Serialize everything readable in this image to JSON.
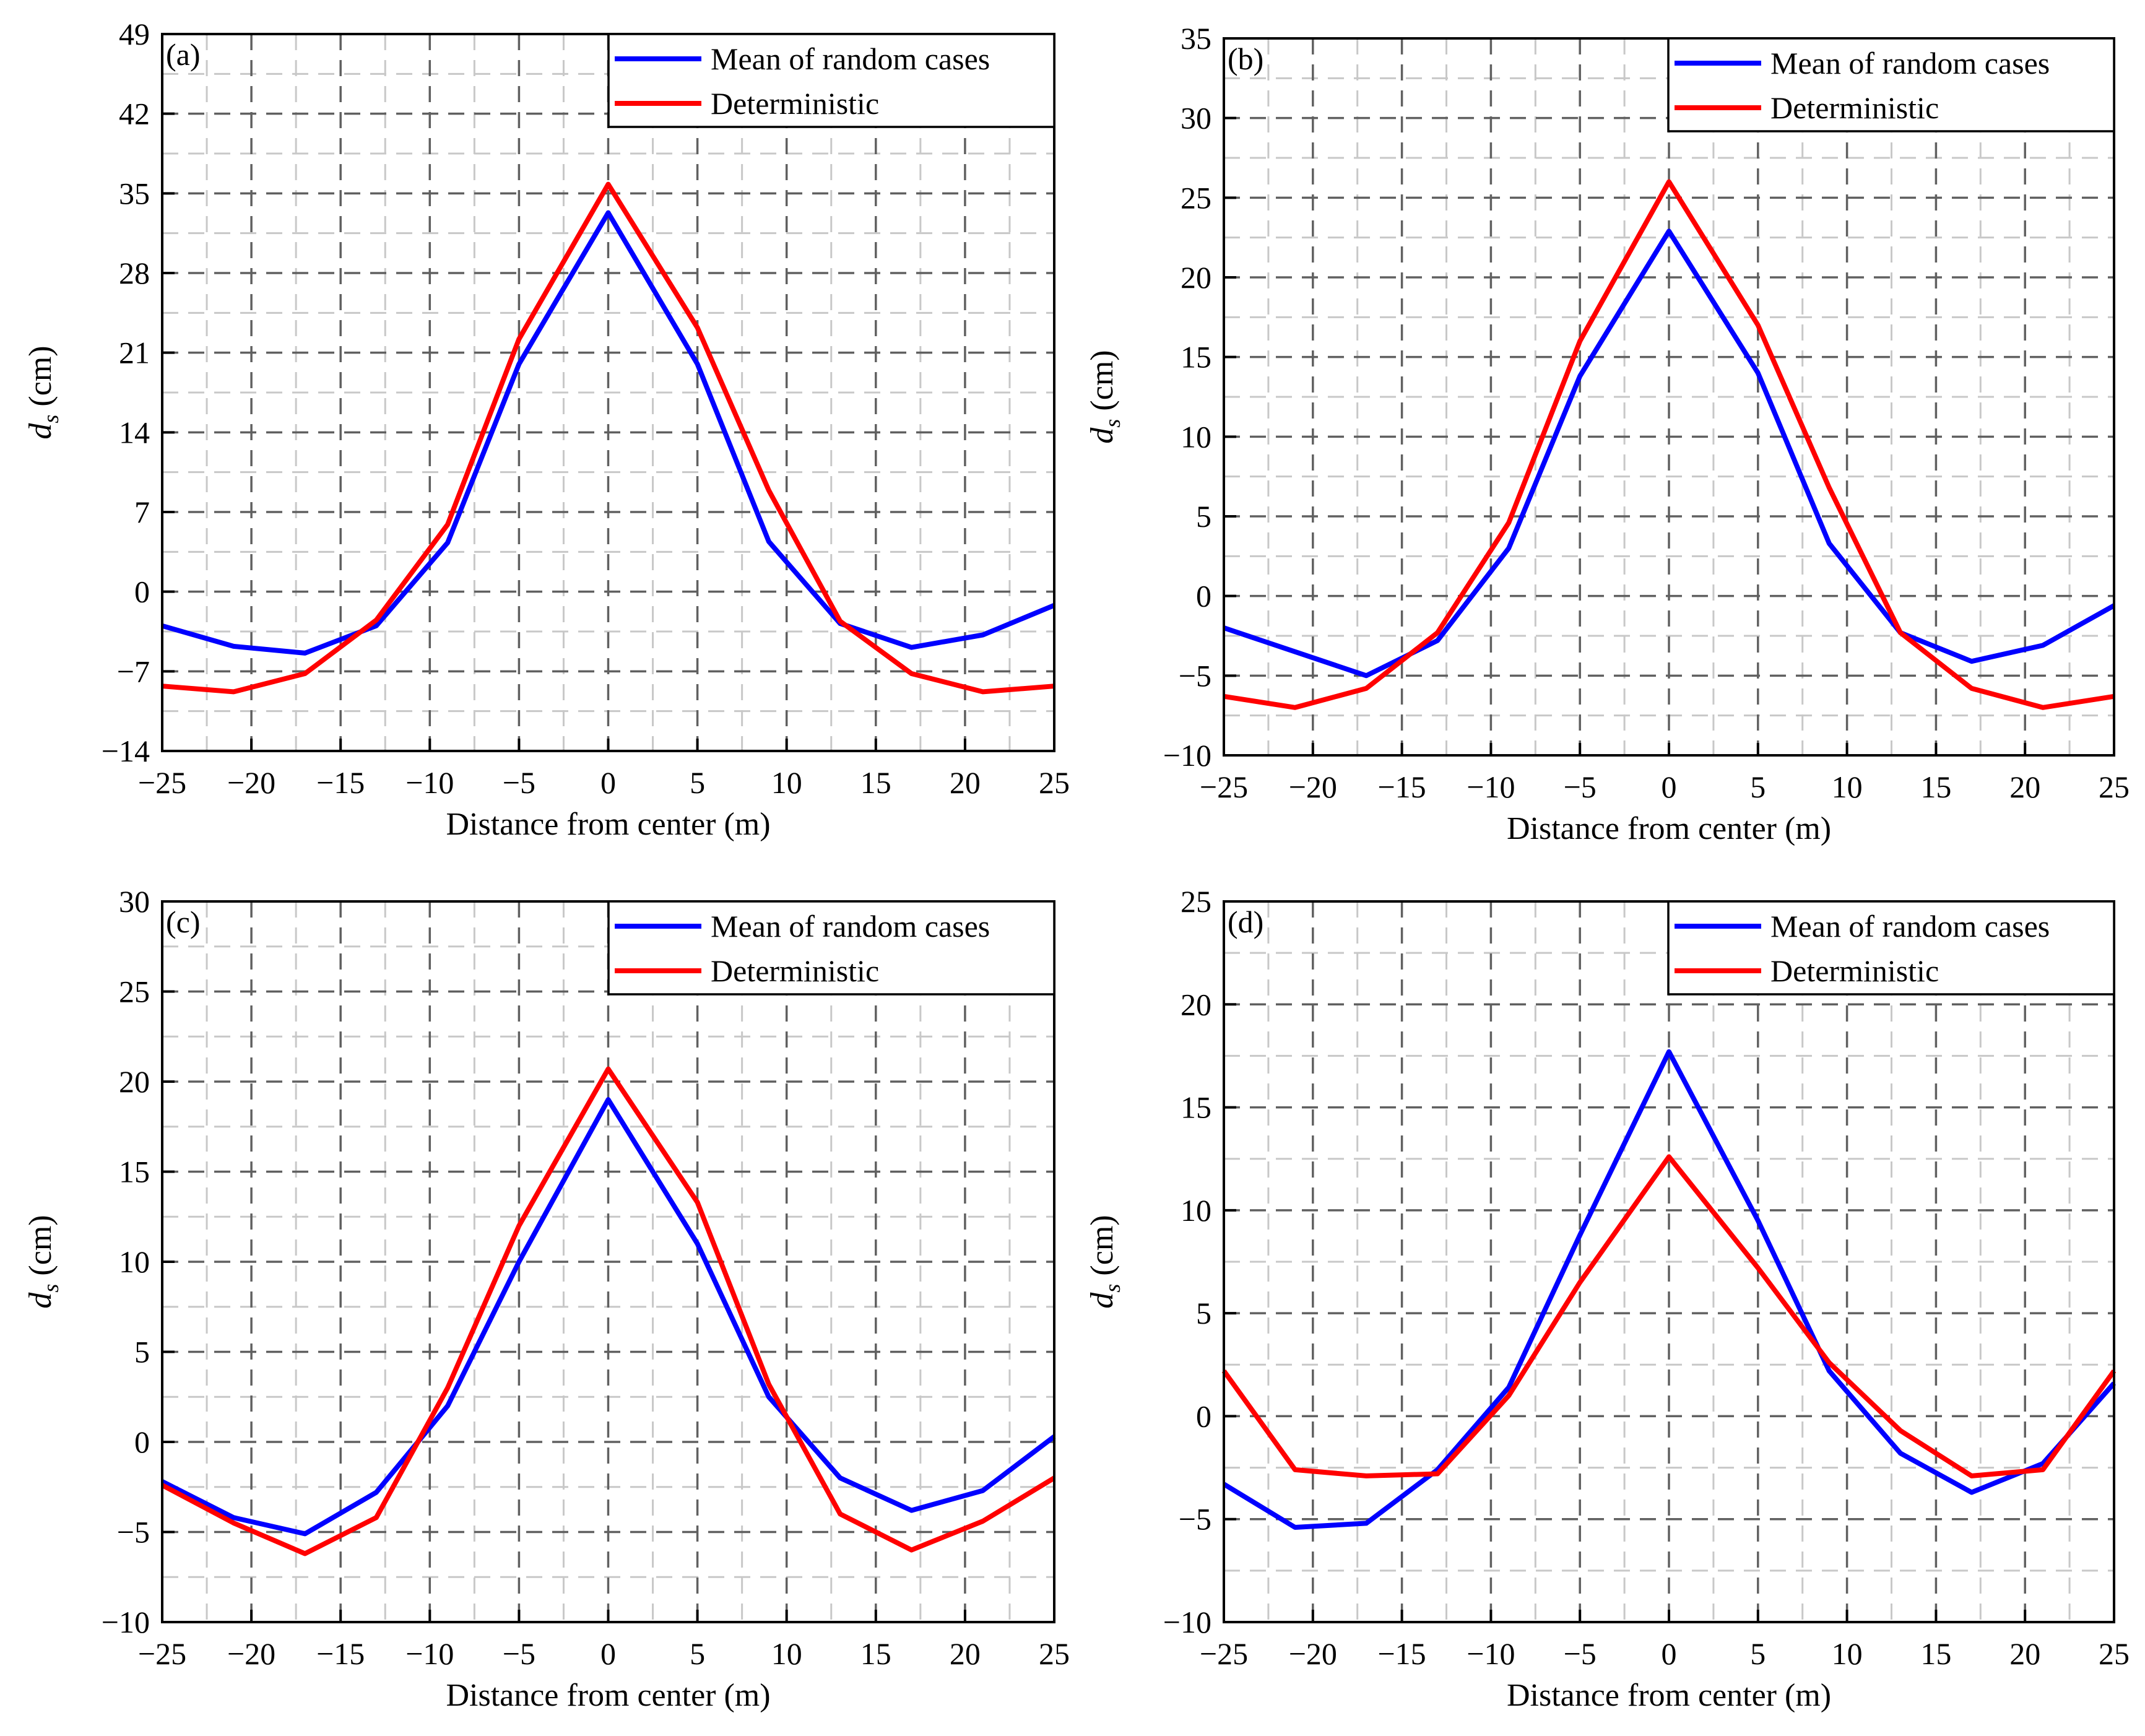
{
  "figure": {
    "legend_labels": [
      "Mean of random cases",
      "Deterministic"
    ]
  },
  "colors": {
    "mean_series": "#0000ff",
    "deterministic_series": "#ff0000",
    "major_grid": "#606060",
    "minor_grid": "#c8c8c8",
    "axis": "#000000"
  },
  "chart_data": [
    {
      "panel": "(a)",
      "type": "line",
      "xlabel": "Distance from center (m)",
      "ylabel_main": "d",
      "ylabel_sub": "s",
      "ylabel_unit": " (cm)",
      "xlim": [
        -25,
        25
      ],
      "ylim": [
        -14,
        49
      ],
      "xticks": [
        -25,
        -20,
        -15,
        -10,
        -5,
        0,
        5,
        10,
        15,
        20,
        25
      ],
      "yticks": [
        -14,
        -7,
        0,
        7,
        14,
        21,
        28,
        35,
        42,
        49
      ],
      "grid": true,
      "legend_position": "top-right",
      "x": [
        -25,
        -21,
        -17,
        -13,
        -9,
        -5,
        0,
        5,
        9,
        13,
        17,
        21,
        25
      ],
      "series": [
        {
          "name": "Mean of random cases",
          "color_key": "mean_series",
          "values": [
            -3,
            -4.8,
            -5.4,
            -3.0,
            4.3,
            20.0,
            33.3,
            20.0,
            4.4,
            -2.8,
            -4.9,
            -3.8,
            -1.2
          ]
        },
        {
          "name": "Deterministic",
          "color_key": "deterministic_series",
          "values": [
            -8.3,
            -8.8,
            -7.2,
            -2.5,
            5.9,
            22.2,
            35.8,
            23.2,
            8.9,
            -2.6,
            -7.2,
            -8.8,
            -8.3
          ]
        }
      ]
    },
    {
      "panel": "(b)",
      "type": "line",
      "xlabel": "Distance from center (m)",
      "ylabel_main": "d",
      "ylabel_sub": "s",
      "ylabel_unit": " (cm)",
      "xlim": [
        -25,
        25
      ],
      "ylim": [
        -10,
        35
      ],
      "xticks": [
        -25,
        -20,
        -15,
        -10,
        -5,
        0,
        5,
        10,
        15,
        20,
        25
      ],
      "yticks": [
        -10,
        -5,
        0,
        5,
        10,
        15,
        20,
        25,
        30,
        35
      ],
      "grid": true,
      "legend_position": "top-right",
      "x": [
        -25,
        -21,
        -17,
        -13,
        -9,
        -5,
        0,
        5,
        9,
        13,
        17,
        21,
        25
      ],
      "series": [
        {
          "name": "Mean of random cases",
          "color_key": "mean_series",
          "values": [
            -2.0,
            -3.5,
            -5.0,
            -2.8,
            3.0,
            13.8,
            22.9,
            14.0,
            3.3,
            -2.3,
            -4.1,
            -3.1,
            -0.6
          ]
        },
        {
          "name": "Deterministic",
          "color_key": "deterministic_series",
          "values": [
            -6.3,
            -7.0,
            -5.8,
            -2.3,
            4.6,
            16.0,
            26.0,
            17.0,
            6.8,
            -2.3,
            -5.8,
            -7.0,
            -6.3
          ]
        }
      ]
    },
    {
      "panel": "(c)",
      "type": "line",
      "xlabel": "Distance from center (m)",
      "ylabel_main": "d",
      "ylabel_sub": "s",
      "ylabel_unit": " (cm)",
      "xlim": [
        -25,
        25
      ],
      "ylim": [
        -10,
        30
      ],
      "xticks": [
        -25,
        -20,
        -15,
        -10,
        -5,
        0,
        5,
        10,
        15,
        20,
        25
      ],
      "yticks": [
        -10,
        -5,
        0,
        5,
        10,
        15,
        20,
        25,
        30
      ],
      "grid": true,
      "legend_position": "top-right",
      "x": [
        -25,
        -21,
        -17,
        -13,
        -9,
        -5,
        0,
        5,
        9,
        13,
        17,
        21,
        25
      ],
      "series": [
        {
          "name": "Mean of random cases",
          "color_key": "mean_series",
          "values": [
            -2.2,
            -4.2,
            -5.1,
            -2.8,
            2.0,
            10.0,
            19.0,
            11.0,
            2.5,
            -2.0,
            -3.8,
            -2.7,
            0.3
          ]
        },
        {
          "name": "Deterministic",
          "color_key": "deterministic_series",
          "values": [
            -2.4,
            -4.5,
            -6.2,
            -4.2,
            3.0,
            12.0,
            20.7,
            13.3,
            3.2,
            -4.0,
            -6.0,
            -4.4,
            -2.0
          ]
        }
      ]
    },
    {
      "panel": "(d)",
      "type": "line",
      "xlabel": "Distance from center (m)",
      "ylabel_main": "d",
      "ylabel_sub": "s",
      "ylabel_unit": " (cm)",
      "xlim": [
        -25,
        25
      ],
      "ylim": [
        -10,
        25
      ],
      "xticks": [
        -25,
        -20,
        -15,
        -10,
        -5,
        0,
        5,
        10,
        15,
        20,
        25
      ],
      "yticks": [
        -10,
        -5,
        0,
        5,
        10,
        15,
        20,
        25
      ],
      "grid": true,
      "legend_position": "top-right",
      "x": [
        -25,
        -21,
        -17,
        -13,
        -9,
        -5,
        0,
        5,
        9,
        13,
        17,
        21,
        25
      ],
      "series": [
        {
          "name": "Mean of random cases",
          "color_key": "mean_series",
          "values": [
            -3.3,
            -5.4,
            -5.2,
            -2.6,
            1.4,
            8.8,
            17.7,
            9.5,
            2.2,
            -1.8,
            -3.7,
            -2.3,
            1.6
          ]
        },
        {
          "name": "Deterministic",
          "color_key": "deterministic_series",
          "values": [
            2.2,
            -2.6,
            -2.9,
            -2.8,
            1.0,
            6.5,
            12.6,
            7.2,
            2.6,
            -0.7,
            -2.9,
            -2.6,
            2.2
          ]
        }
      ]
    }
  ]
}
